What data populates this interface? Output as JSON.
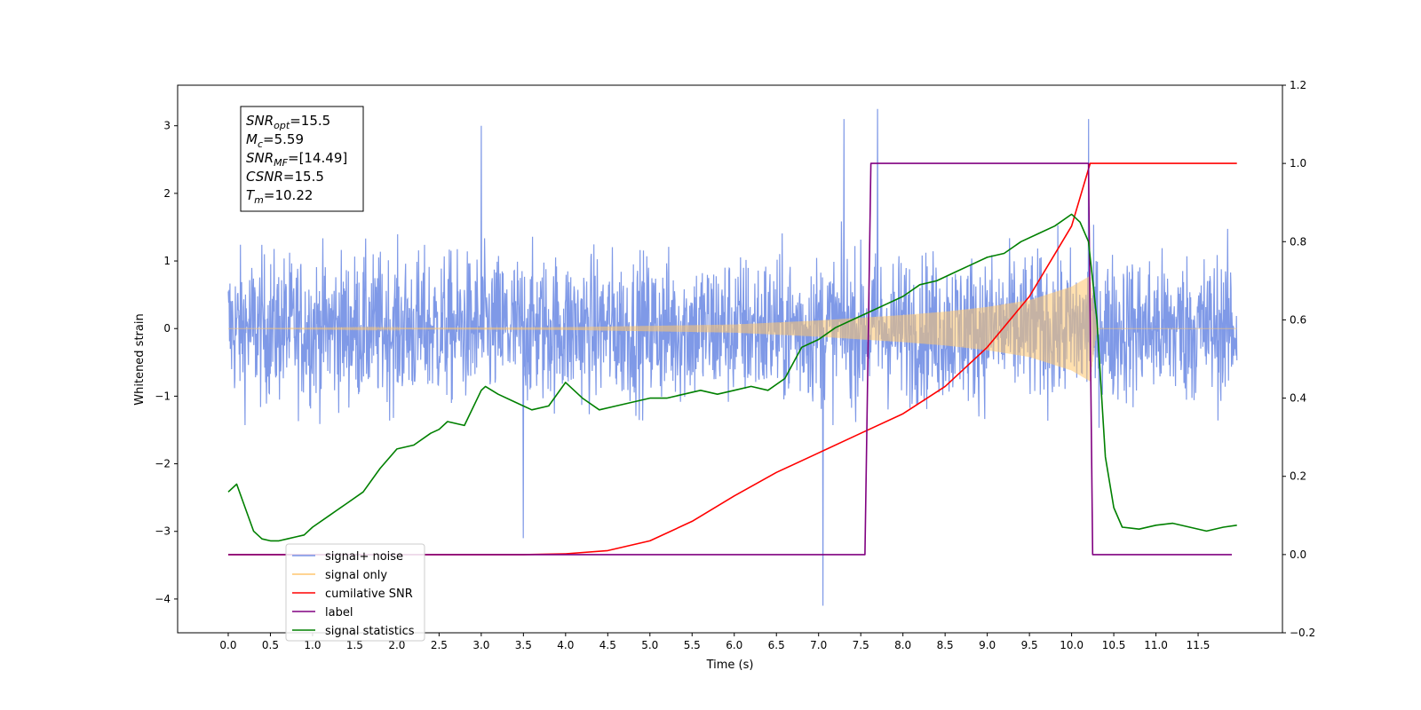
{
  "chart_data": {
    "type": "line",
    "xlabel": "Time (s)",
    "ylabel": "Whitened strain",
    "xlim": [
      -0.6,
      12.5
    ],
    "ylim": [
      -4.5,
      3.6
    ],
    "y2lim": [
      -0.2,
      1.2
    ],
    "x_ticks": [
      0.0,
      0.5,
      1.0,
      1.5,
      2.0,
      2.5,
      3.0,
      3.5,
      4.0,
      4.5,
      5.0,
      5.5,
      6.0,
      6.5,
      7.0,
      7.5,
      8.0,
      8.5,
      9.0,
      9.5,
      10.0,
      10.5,
      11.0,
      11.5
    ],
    "x_tick_labels": [
      "0.0",
      "0.5",
      "1.0",
      "1.5",
      "2.0",
      "2.5",
      "3.0",
      "3.5",
      "4.0",
      "4.5",
      "5.0",
      "5.5",
      "6.0",
      "6.5",
      "7.0",
      "7.5",
      "8.0",
      "8.5",
      "9.0",
      "9.5",
      "10.0",
      "10.5",
      "11.0",
      "11.5"
    ],
    "y_ticks": [
      3,
      2,
      1,
      0,
      -1,
      -2,
      -3,
      -4
    ],
    "y_tick_labels": [
      "3",
      "2",
      "1",
      "0",
      "−1",
      "−2",
      "−3",
      "−4"
    ],
    "y2_ticks": [
      1.2,
      1.0,
      0.8,
      0.6,
      0.4,
      0.2,
      0.0,
      -0.2
    ],
    "y2_tick_labels": [
      "1.2",
      "1.0",
      "0.8",
      "0.6",
      "0.4",
      "0.2",
      "0.0",
      "−0.2"
    ],
    "legend_position": "lower-left",
    "annotation": {
      "lines": [
        {
          "base": "SNR",
          "sub": "opt",
          "rest": "=15.5"
        },
        {
          "base": "M",
          "sub": "c",
          "rest": "=5.59"
        },
        {
          "base": "SNR",
          "sub": "MF",
          "rest": "=[14.49]"
        },
        {
          "base": "CSNR",
          "sub": "",
          "rest": "=15.5"
        },
        {
          "base": "T",
          "sub": "m",
          "rest": "=10.22"
        }
      ]
    },
    "series": [
      {
        "name": "signal+ noise",
        "color": "#7893e6",
        "axis": "left",
        "kind": "noise",
        "x_range": [
          0.0,
          11.96
        ],
        "typical_range": [
          -1.5,
          1.5
        ],
        "extremes": [
          {
            "x": 7.05,
            "y": -4.1
          },
          {
            "x": 7.7,
            "y": 3.25
          },
          {
            "x": 10.2,
            "y": 3.1
          },
          {
            "x": 7.3,
            "y": 3.1
          },
          {
            "x": 3.5,
            "y": -3.1
          },
          {
            "x": 3.0,
            "y": 3.0
          }
        ]
      },
      {
        "name": "signal only",
        "color": "#ffc66e",
        "axis": "left",
        "kind": "chirp",
        "x_range": [
          0.0,
          11.96
        ],
        "merger_time": 10.22,
        "envelope": [
          [
            0.0,
            0.0
          ],
          [
            4.0,
            0.02
          ],
          [
            6.0,
            0.06
          ],
          [
            7.0,
            0.12
          ],
          [
            8.0,
            0.2
          ],
          [
            8.5,
            0.25
          ],
          [
            9.0,
            0.32
          ],
          [
            9.5,
            0.42
          ],
          [
            10.0,
            0.62
          ],
          [
            10.22,
            0.78
          ],
          [
            10.3,
            0.0
          ]
        ]
      },
      {
        "name": "cumilative SNR",
        "color": "#ff0000",
        "axis": "right",
        "x": [
          0.0,
          3.5,
          4.0,
          4.5,
          5.0,
          5.5,
          6.0,
          6.5,
          7.0,
          7.5,
          8.0,
          8.5,
          9.0,
          9.5,
          10.0,
          10.22,
          11.96
        ],
        "values": [
          0.0,
          0.0,
          0.002,
          0.01,
          0.035,
          0.085,
          0.15,
          0.21,
          0.26,
          0.31,
          0.36,
          0.43,
          0.53,
          0.66,
          0.84,
          1.0,
          1.0
        ]
      },
      {
        "name": "label",
        "color": "#800080",
        "axis": "right",
        "x": [
          0.0,
          7.55,
          7.62,
          10.2,
          10.25,
          11.9
        ],
        "values": [
          0.0,
          0.0,
          1.0,
          1.0,
          0.0,
          0.0
        ]
      },
      {
        "name": "signal statistics",
        "color": "#008000",
        "axis": "right",
        "x": [
          0.0,
          0.1,
          0.2,
          0.3,
          0.4,
          0.5,
          0.6,
          0.7,
          0.8,
          0.9,
          1.0,
          1.2,
          1.4,
          1.6,
          1.8,
          2.0,
          2.2,
          2.4,
          2.5,
          2.6,
          2.8,
          3.0,
          3.05,
          3.2,
          3.4,
          3.6,
          3.8,
          4.0,
          4.2,
          4.4,
          4.6,
          4.8,
          5.0,
          5.2,
          5.4,
          5.6,
          5.8,
          6.0,
          6.2,
          6.4,
          6.6,
          6.8,
          7.0,
          7.2,
          7.4,
          7.6,
          7.8,
          8.0,
          8.2,
          8.4,
          8.6,
          8.8,
          9.0,
          9.2,
          9.4,
          9.6,
          9.8,
          10.0,
          10.1,
          10.2,
          10.3,
          10.4,
          10.5,
          10.6,
          10.8,
          11.0,
          11.2,
          11.4,
          11.6,
          11.8,
          11.96
        ],
        "values": [
          0.16,
          0.18,
          0.12,
          0.06,
          0.04,
          0.035,
          0.035,
          0.04,
          0.045,
          0.05,
          0.07,
          0.1,
          0.13,
          0.16,
          0.22,
          0.27,
          0.28,
          0.31,
          0.32,
          0.34,
          0.33,
          0.42,
          0.43,
          0.41,
          0.39,
          0.37,
          0.38,
          0.44,
          0.4,
          0.37,
          0.38,
          0.39,
          0.4,
          0.4,
          0.41,
          0.42,
          0.41,
          0.42,
          0.43,
          0.42,
          0.45,
          0.53,
          0.55,
          0.58,
          0.6,
          0.62,
          0.64,
          0.66,
          0.69,
          0.7,
          0.72,
          0.74,
          0.76,
          0.77,
          0.8,
          0.82,
          0.84,
          0.87,
          0.85,
          0.8,
          0.6,
          0.25,
          0.12,
          0.07,
          0.065,
          0.075,
          0.08,
          0.07,
          0.06,
          0.07,
          0.075
        ]
      }
    ]
  }
}
